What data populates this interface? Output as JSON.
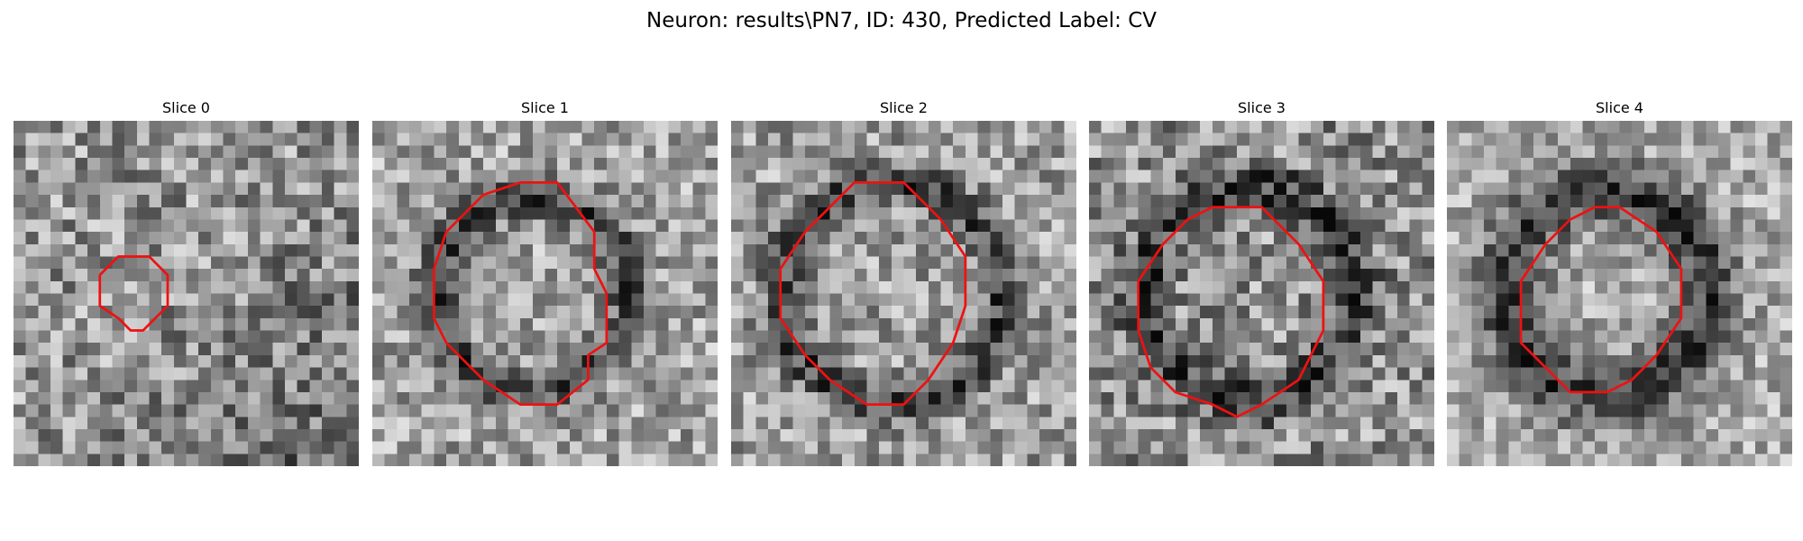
{
  "figure": {
    "title": "Neuron: results\\PN7, ID: 430, Predicted Label: CV"
  },
  "contour_color": "#ee1111",
  "panels": [
    {
      "title": "Slice 0",
      "seed": 11,
      "base": 150,
      "spread": 72,
      "ring": false,
      "ring_radius": 0,
      "ring_width": 0,
      "ring_darkness": 0,
      "lower_right_darkness": 48,
      "contour": [
        [
          7,
          12.5
        ],
        [
          8.5,
          11
        ],
        [
          11,
          11
        ],
        [
          12.5,
          12.5
        ],
        [
          12.5,
          15
        ],
        [
          10.5,
          17
        ],
        [
          9.5,
          17
        ],
        [
          8.5,
          16
        ],
        [
          7,
          15
        ],
        [
          7,
          12.5
        ]
      ]
    },
    {
      "title": "Slice 1",
      "seed": 23,
      "base": 162,
      "spread": 64,
      "ring": true,
      "ring_radius": 7.8,
      "ring_width": 1.6,
      "ring_darkness": 95,
      "lower_right_darkness": 0,
      "contour": [
        [
          12,
          5
        ],
        [
          15,
          5
        ],
        [
          18,
          9
        ],
        [
          18,
          12
        ],
        [
          19,
          14
        ],
        [
          19,
          18
        ],
        [
          17.5,
          19
        ],
        [
          17.5,
          21
        ],
        [
          15,
          23
        ],
        [
          12,
          23
        ],
        [
          9,
          21
        ],
        [
          6,
          18
        ],
        [
          5,
          16
        ],
        [
          5,
          12
        ],
        [
          6,
          9
        ],
        [
          9,
          6
        ],
        [
          12,
          5
        ]
      ]
    },
    {
      "title": "Slice 2",
      "seed": 37,
      "base": 158,
      "spread": 66,
      "ring": true,
      "ring_radius": 8.9,
      "ring_width": 1.7,
      "ring_darkness": 90,
      "lower_right_darkness": 0,
      "contour": [
        [
          12,
          5
        ],
        [
          14,
          5
        ],
        [
          17,
          8
        ],
        [
          19,
          11
        ],
        [
          19,
          15
        ],
        [
          18,
          18
        ],
        [
          16,
          21
        ],
        [
          14,
          23
        ],
        [
          11,
          23
        ],
        [
          8,
          21
        ],
        [
          6,
          19
        ],
        [
          4,
          16
        ],
        [
          4,
          12
        ],
        [
          6,
          9
        ],
        [
          8,
          7
        ],
        [
          10,
          5
        ],
        [
          12,
          5
        ]
      ]
    },
    {
      "title": "Slice 3",
      "seed": 41,
      "base": 145,
      "spread": 74,
      "ring": true,
      "ring_radius": 8.6,
      "ring_width": 1.9,
      "ring_darkness": 88,
      "lower_right_darkness": 0,
      "contour": [
        [
          10,
          7
        ],
        [
          14,
          7
        ],
        [
          17,
          10
        ],
        [
          19,
          13
        ],
        [
          19,
          17
        ],
        [
          17,
          21
        ],
        [
          14,
          23
        ],
        [
          12,
          24
        ],
        [
          10,
          23
        ],
        [
          7,
          22
        ],
        [
          5,
          20
        ],
        [
          4,
          17
        ],
        [
          4,
          13
        ],
        [
          6,
          10
        ],
        [
          8,
          8
        ],
        [
          10,
          7
        ]
      ]
    },
    {
      "title": "Slice 4",
      "seed": 53,
      "base": 170,
      "spread": 58,
      "ring": true,
      "ring_radius": 8.2,
      "ring_width": 2.6,
      "ring_darkness": 110,
      "lower_right_darkness": 0,
      "contour": [
        [
          12,
          7
        ],
        [
          14,
          7
        ],
        [
          17,
          9
        ],
        [
          19,
          12
        ],
        [
          19,
          16
        ],
        [
          17,
          19
        ],
        [
          15,
          21
        ],
        [
          13,
          22
        ],
        [
          10,
          22
        ],
        [
          8,
          20
        ],
        [
          6,
          18
        ],
        [
          6,
          13
        ],
        [
          8,
          10
        ],
        [
          10,
          8
        ],
        [
          12,
          7
        ]
      ]
    }
  ]
}
